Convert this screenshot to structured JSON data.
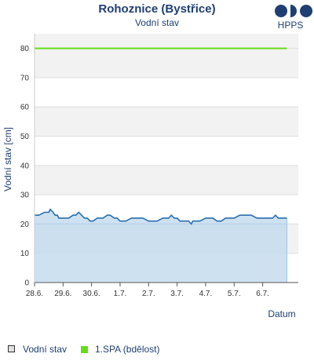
{
  "chart_data": {
    "type": "line",
    "title": "Rohoznice (Bystřice)",
    "subtitle": "Vodní stav",
    "ylabel": "Vodní stav [cm]",
    "xlabel": "Datum",
    "ylim": [
      0,
      85
    ],
    "yticks": [
      0,
      10,
      20,
      30,
      40,
      50,
      60,
      70,
      80
    ],
    "xlim": [
      0,
      9.25
    ],
    "x_tick_labels": [
      "28.6.",
      "29.6.",
      "30.6.",
      "1.7.",
      "2.7.",
      "3.7.",
      "4.7.",
      "5.7.",
      "6.7."
    ],
    "grid": true,
    "legend_position": "bottom-left",
    "series": [
      {
        "name": "Vodní stav",
        "color": "#2a6fae",
        "fill": "#c6dcef",
        "x": [
          0.0,
          0.15,
          0.35,
          0.5,
          0.55,
          0.65,
          0.72,
          0.8,
          0.85,
          1.0,
          1.2,
          1.35,
          1.45,
          1.55,
          1.65,
          1.75,
          1.85,
          1.95,
          2.05,
          2.2,
          2.4,
          2.55,
          2.65,
          2.8,
          2.9,
          3.0,
          3.1,
          3.2,
          3.4,
          3.6,
          3.8,
          4.0,
          4.1,
          4.3,
          4.5,
          4.7,
          4.8,
          4.9,
          5.0,
          5.1,
          5.25,
          5.4,
          5.5,
          5.55,
          5.65,
          5.8,
          6.0,
          6.1,
          6.25,
          6.4,
          6.55,
          6.7,
          6.85,
          7.0,
          7.2,
          7.4,
          7.6,
          7.8,
          7.95,
          8.05,
          8.15,
          8.25,
          8.35,
          8.45,
          8.55,
          8.65,
          8.75,
          8.85
        ],
        "y": [
          23,
          23,
          24,
          24,
          25,
          24,
          23,
          23,
          22,
          22,
          22,
          23,
          23,
          24,
          23,
          22,
          22,
          21,
          21,
          22,
          22,
          23,
          23,
          22,
          22,
          21,
          21,
          21,
          22,
          22,
          22,
          21,
          21,
          21,
          22,
          22,
          23,
          22,
          22,
          21,
          21,
          21,
          20,
          21,
          21,
          21,
          22,
          22,
          22,
          21,
          21,
          22,
          22,
          22,
          23,
          23,
          23,
          22,
          22,
          22,
          22,
          22,
          22,
          23,
          22,
          22,
          22,
          22
        ]
      },
      {
        "name": "1.SPA (bdělost)",
        "color": "#66dd1a",
        "x": [
          0.0,
          8.85
        ],
        "y": [
          80,
          80
        ]
      }
    ]
  },
  "logo": {
    "text": "HPPS"
  }
}
